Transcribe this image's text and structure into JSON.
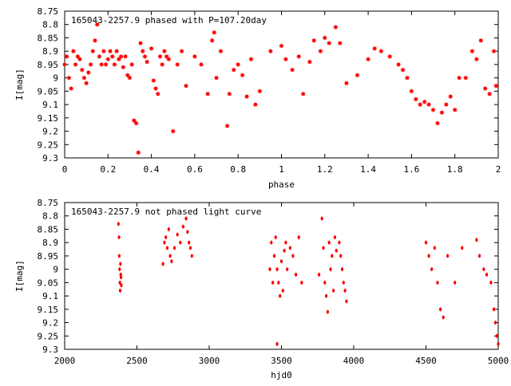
{
  "chart_data": [
    {
      "type": "scatter",
      "title": "165043-2257.9 phased with P=107.20day",
      "xlabel": "phase",
      "ylabel": "I[mag]",
      "xlim": [
        0,
        2
      ],
      "ylim": [
        8.75,
        9.3
      ],
      "y_inverted": true,
      "grid": false,
      "marker": "star",
      "color": "#ff0000",
      "x_ticks": [
        "0",
        "0.2",
        "0.4",
        "0.6",
        "0.8",
        "1",
        "1.2",
        "1.4",
        "1.6",
        "1.8",
        "2"
      ],
      "y_ticks": [
        "8.75",
        "8.8",
        "8.85",
        "8.9",
        "8.95",
        "9",
        "9.05",
        "9.1",
        "9.15",
        "9.2",
        "9.25",
        "9.3"
      ],
      "points": [
        [
          0.0,
          8.95
        ],
        [
          0.01,
          8.92
        ],
        [
          0.02,
          9.0
        ],
        [
          0.03,
          9.04
        ],
        [
          0.04,
          8.9
        ],
        [
          0.05,
          8.95
        ],
        [
          0.06,
          8.92
        ],
        [
          0.07,
          8.93
        ],
        [
          0.08,
          8.97
        ],
        [
          0.09,
          9.0
        ],
        [
          0.1,
          9.02
        ],
        [
          0.11,
          8.98
        ],
        [
          0.12,
          8.95
        ],
        [
          0.13,
          8.9
        ],
        [
          0.14,
          8.86
        ],
        [
          0.15,
          8.8
        ],
        [
          0.16,
          8.92
        ],
        [
          0.17,
          8.95
        ],
        [
          0.18,
          8.9
        ],
        [
          0.19,
          8.95
        ],
        [
          0.2,
          8.93
        ],
        [
          0.21,
          8.9
        ],
        [
          0.22,
          8.92
        ],
        [
          0.23,
          8.95
        ],
        [
          0.24,
          8.9
        ],
        [
          0.25,
          8.93
        ],
        [
          0.26,
          8.92
        ],
        [
          0.27,
          8.96
        ],
        [
          0.28,
          8.92
        ],
        [
          0.29,
          8.99
        ],
        [
          0.3,
          9.0
        ],
        [
          0.31,
          8.95
        ],
        [
          0.32,
          9.16
        ],
        [
          0.33,
          9.17
        ],
        [
          0.34,
          9.28
        ],
        [
          0.35,
          8.87
        ],
        [
          0.36,
          8.9
        ],
        [
          0.37,
          8.92
        ],
        [
          0.38,
          8.94
        ],
        [
          0.4,
          8.89
        ],
        [
          0.41,
          9.01
        ],
        [
          0.42,
          9.04
        ],
        [
          0.43,
          9.06
        ],
        [
          0.44,
          8.92
        ],
        [
          0.45,
          8.95
        ],
        [
          0.46,
          8.9
        ],
        [
          0.47,
          8.92
        ],
        [
          0.48,
          8.93
        ],
        [
          0.5,
          9.2
        ],
        [
          0.52,
          8.95
        ],
        [
          0.54,
          8.9
        ],
        [
          0.56,
          9.03
        ],
        [
          0.6,
          8.92
        ],
        [
          0.63,
          8.95
        ],
        [
          0.66,
          9.06
        ],
        [
          0.68,
          8.86
        ],
        [
          0.69,
          8.83
        ],
        [
          0.7,
          9.0
        ],
        [
          0.72,
          8.9
        ],
        [
          0.75,
          9.18
        ],
        [
          0.76,
          9.06
        ],
        [
          0.78,
          8.97
        ],
        [
          0.8,
          8.95
        ],
        [
          0.82,
          8.99
        ],
        [
          0.84,
          9.07
        ],
        [
          0.86,
          8.93
        ],
        [
          0.88,
          9.1
        ],
        [
          0.9,
          9.05
        ],
        [
          0.95,
          8.9
        ],
        [
          1.0,
          8.88
        ],
        [
          1.02,
          8.93
        ],
        [
          1.05,
          8.97
        ],
        [
          1.08,
          8.92
        ],
        [
          1.1,
          9.06
        ],
        [
          1.13,
          8.94
        ],
        [
          1.15,
          8.86
        ],
        [
          1.18,
          8.9
        ],
        [
          1.2,
          8.85
        ],
        [
          1.22,
          8.87
        ],
        [
          1.25,
          8.81
        ],
        [
          1.27,
          8.87
        ],
        [
          1.3,
          9.02
        ],
        [
          1.35,
          8.99
        ],
        [
          1.4,
          8.93
        ],
        [
          1.43,
          8.89
        ],
        [
          1.46,
          8.9
        ],
        [
          1.5,
          8.92
        ],
        [
          1.54,
          8.95
        ],
        [
          1.56,
          8.97
        ],
        [
          1.58,
          9.0
        ],
        [
          1.6,
          9.05
        ],
        [
          1.62,
          9.08
        ],
        [
          1.64,
          9.1
        ],
        [
          1.66,
          9.09
        ],
        [
          1.68,
          9.1
        ],
        [
          1.7,
          9.12
        ],
        [
          1.72,
          9.17
        ],
        [
          1.74,
          9.13
        ],
        [
          1.76,
          9.1
        ],
        [
          1.78,
          9.07
        ],
        [
          1.8,
          9.12
        ],
        [
          1.82,
          9.0
        ],
        [
          1.85,
          9.0
        ],
        [
          1.88,
          8.9
        ],
        [
          1.9,
          8.93
        ],
        [
          1.92,
          8.86
        ],
        [
          1.94,
          9.04
        ],
        [
          1.96,
          9.06
        ],
        [
          1.98,
          8.9
        ],
        [
          1.99,
          9.03
        ]
      ]
    },
    {
      "type": "scatter",
      "title": "165043-2257.9 not phased light curve",
      "xlabel": "hjd0",
      "ylabel": "I[mag]",
      "xlim": [
        2000,
        5000
      ],
      "ylim": [
        8.75,
        9.3
      ],
      "y_inverted": true,
      "grid": false,
      "marker": "dot",
      "color": "#ff0000",
      "x_ticks": [
        "2000",
        "2500",
        "3000",
        "3500",
        "4000",
        "4500",
        "5000"
      ],
      "y_ticks": [
        "8.75",
        "8.8",
        "8.85",
        "8.9",
        "8.95",
        "9",
        "9.05",
        "9.1",
        "9.15",
        "9.2",
        "9.25",
        "9.3"
      ],
      "points": [
        [
          2372,
          8.83
        ],
        [
          2376,
          8.88
        ],
        [
          2378,
          8.95
        ],
        [
          2380,
          9.0
        ],
        [
          2382,
          9.05
        ],
        [
          2384,
          9.08
        ],
        [
          2386,
          8.98
        ],
        [
          2388,
          9.02
        ],
        [
          2390,
          9.03
        ],
        [
          2392,
          9.06
        ],
        [
          2680,
          8.98
        ],
        [
          2690,
          8.9
        ],
        [
          2700,
          8.88
        ],
        [
          2710,
          8.92
        ],
        [
          2720,
          8.85
        ],
        [
          2730,
          8.95
        ],
        [
          2740,
          8.97
        ],
        [
          2760,
          8.92
        ],
        [
          2780,
          8.87
        ],
        [
          2800,
          8.9
        ],
        [
          2820,
          8.84
        ],
        [
          2840,
          8.81
        ],
        [
          2850,
          8.86
        ],
        [
          2860,
          8.9
        ],
        [
          2870,
          8.92
        ],
        [
          2880,
          8.95
        ],
        [
          3420,
          9.0
        ],
        [
          3430,
          8.9
        ],
        [
          3440,
          9.05
        ],
        [
          3450,
          8.95
        ],
        [
          3460,
          8.88
        ],
        [
          3470,
          9.0
        ],
        [
          3480,
          9.05
        ],
        [
          3490,
          9.1
        ],
        [
          3500,
          8.97
        ],
        [
          3510,
          9.08
        ],
        [
          3520,
          8.93
        ],
        [
          3530,
          8.9
        ],
        [
          3540,
          9.0
        ],
        [
          3560,
          8.92
        ],
        [
          3580,
          8.95
        ],
        [
          3600,
          9.02
        ],
        [
          3620,
          8.88
        ],
        [
          3640,
          9.05
        ],
        [
          3760,
          9.02
        ],
        [
          3780,
          8.81
        ],
        [
          3790,
          8.92
        ],
        [
          3800,
          9.05
        ],
        [
          3810,
          9.1
        ],
        [
          3820,
          9.16
        ],
        [
          3830,
          8.9
        ],
        [
          3840,
          9.0
        ],
        [
          3850,
          8.95
        ],
        [
          3860,
          9.08
        ],
        [
          3870,
          8.88
        ],
        [
          3880,
          8.93
        ],
        [
          3900,
          8.9
        ],
        [
          3910,
          8.95
        ],
        [
          3920,
          9.0
        ],
        [
          3930,
          9.05
        ],
        [
          3940,
          9.08
        ],
        [
          3950,
          9.12
        ],
        [
          3470,
          9.28
        ],
        [
          4500,
          8.9
        ],
        [
          4520,
          8.95
        ],
        [
          4540,
          9.0
        ],
        [
          4560,
          8.92
        ],
        [
          4580,
          9.05
        ],
        [
          4600,
          9.15
        ],
        [
          4620,
          9.18
        ],
        [
          4650,
          8.95
        ],
        [
          4700,
          9.05
        ],
        [
          4750,
          8.92
        ],
        [
          4850,
          8.89
        ],
        [
          4870,
          8.95
        ],
        [
          4900,
          9.0
        ],
        [
          4920,
          9.02
        ],
        [
          4950,
          9.05
        ],
        [
          4970,
          9.15
        ],
        [
          4980,
          9.2
        ],
        [
          4990,
          9.25
        ],
        [
          5000,
          9.28
        ]
      ]
    }
  ]
}
